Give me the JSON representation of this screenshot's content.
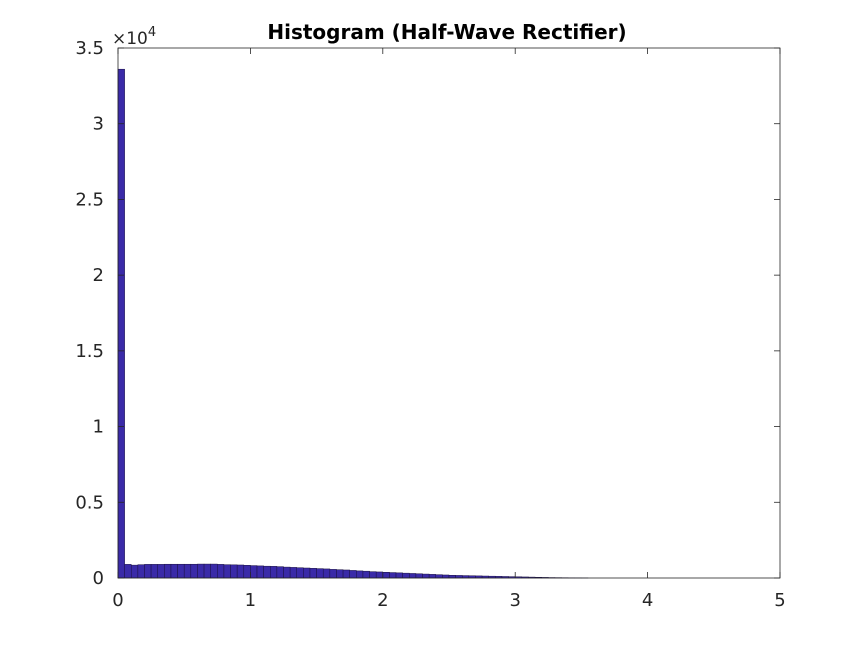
{
  "chart_data": {
    "type": "bar",
    "title": "Histogram (Half-Wave Rectifier)",
    "xlabel": "",
    "ylabel": "",
    "xlim": [
      0,
      5
    ],
    "ylim": [
      0,
      35000
    ],
    "y_exponent_label": "×10",
    "y_exponent_power": "4",
    "x_ticks": [
      0,
      1,
      2,
      3,
      4,
      5
    ],
    "x_tick_labels": [
      "0",
      "1",
      "2",
      "3",
      "4",
      "5"
    ],
    "y_ticks": [
      0,
      5000,
      10000,
      15000,
      20000,
      25000,
      30000,
      35000
    ],
    "y_tick_labels": [
      "0",
      "0.5",
      "1",
      "1.5",
      "2",
      "2.5",
      "3",
      "3.5"
    ],
    "grid": false,
    "bar_color": "#3a2aa8",
    "bar_edge_color": "#1a1040",
    "bin_width": 0.05,
    "bin_starts": [
      0,
      0.05,
      0.1,
      0.15,
      0.2,
      0.25,
      0.3,
      0.35,
      0.4,
      0.45,
      0.5,
      0.55,
      0.6,
      0.65,
      0.7,
      0.75,
      0.8,
      0.85,
      0.9,
      0.95,
      1.0,
      1.05,
      1.1,
      1.15,
      1.2,
      1.25,
      1.3,
      1.35,
      1.4,
      1.45,
      1.5,
      1.55,
      1.6,
      1.65,
      1.7,
      1.75,
      1.8,
      1.85,
      1.9,
      1.95,
      2.0,
      2.05,
      2.1,
      2.15,
      2.2,
      2.25,
      2.3,
      2.35,
      2.4,
      2.45,
      2.5,
      2.55,
      2.6,
      2.65,
      2.7,
      2.75,
      2.8,
      2.85,
      2.9,
      2.95,
      3.0,
      3.05,
      3.1,
      3.15,
      3.2,
      3.25,
      3.3,
      3.35,
      3.4,
      3.45,
      3.5
    ],
    "values": [
      33600,
      900,
      850,
      880,
      900,
      900,
      900,
      910,
      910,
      910,
      910,
      910,
      920,
      920,
      920,
      900,
      880,
      870,
      860,
      840,
      820,
      800,
      780,
      770,
      750,
      720,
      700,
      680,
      660,
      640,
      620,
      600,
      570,
      550,
      530,
      500,
      470,
      450,
      420,
      400,
      380,
      360,
      340,
      320,
      300,
      280,
      260,
      240,
      220,
      200,
      180,
      170,
      160,
      150,
      140,
      130,
      120,
      110,
      100,
      90,
      80,
      70,
      60,
      50,
      40,
      30,
      25,
      20,
      15,
      10,
      5
    ]
  }
}
